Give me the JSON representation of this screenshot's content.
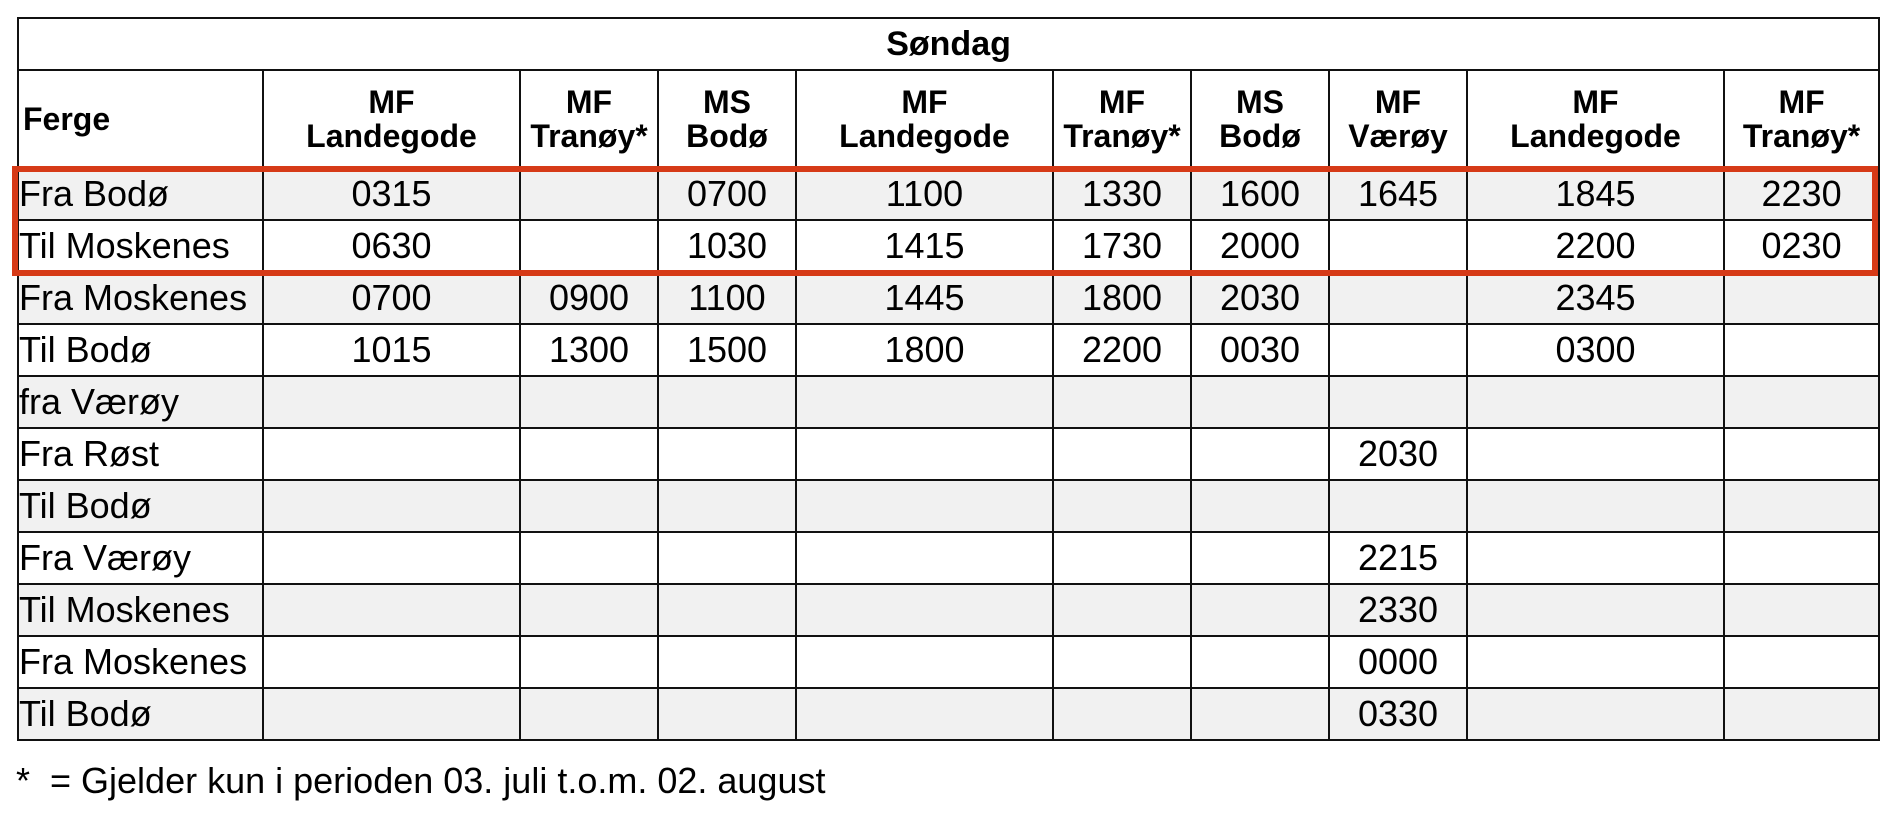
{
  "title": "Søndag",
  "header": {
    "label": "Ferge",
    "columns": [
      {
        "line1": "MF",
        "line2": "Landegode"
      },
      {
        "line1": "MF",
        "line2": "Tranøy*"
      },
      {
        "line1": "MS",
        "line2": "Bodø"
      },
      {
        "line1": "MF",
        "line2": "Landegode"
      },
      {
        "line1": "MF",
        "line2": "Tranøy*"
      },
      {
        "line1": "MS",
        "line2": "Bodø"
      },
      {
        "line1": "MF",
        "line2": "Værøy"
      },
      {
        "line1": "MF",
        "line2": "Landegode"
      },
      {
        "line1": "MF",
        "line2": "Tranøy*"
      }
    ]
  },
  "rows": [
    {
      "label": "Fra Bodø",
      "times": [
        "0315",
        "",
        "0700",
        "1100",
        "1330",
        "1600",
        "1645",
        "1845",
        "2230"
      ]
    },
    {
      "label": "Til Moskenes",
      "times": [
        "0630",
        "",
        "1030",
        "1415",
        "1730",
        "2000",
        "",
        "2200",
        "0230"
      ]
    },
    {
      "label": "Fra Moskenes",
      "times": [
        "0700",
        "0900",
        "1100",
        "1445",
        "1800",
        "2030",
        "",
        "2345",
        ""
      ]
    },
    {
      "label": "Til Bodø",
      "times": [
        "1015",
        "1300",
        "1500",
        "1800",
        "2200",
        "0030",
        "",
        "0300",
        ""
      ]
    },
    {
      "label": "fra Værøy",
      "times": [
        "",
        "",
        "",
        "",
        "",
        "",
        "",
        "",
        ""
      ]
    },
    {
      "label": "Fra Røst",
      "times": [
        "",
        "",
        "",
        "",
        "",
        "",
        "2030",
        "",
        ""
      ]
    },
    {
      "label": "Til Bodø",
      "times": [
        "",
        "",
        "",
        "",
        "",
        "",
        "",
        "",
        ""
      ]
    },
    {
      "label": "Fra Værøy",
      "times": [
        "",
        "",
        "",
        "",
        "",
        "",
        "2215",
        "",
        ""
      ]
    },
    {
      "label": "Til Moskenes",
      "times": [
        "",
        "",
        "",
        "",
        "",
        "",
        "2330",
        "",
        ""
      ]
    },
    {
      "label": "Fra Moskenes",
      "times": [
        "",
        "",
        "",
        "",
        "",
        "",
        "0000",
        "",
        ""
      ]
    },
    {
      "label": "Til Bodø",
      "times": [
        "",
        "",
        "",
        "",
        "",
        "",
        "0330",
        "",
        ""
      ]
    }
  ],
  "footnote": "*  = Gjelder kun i perioden 03. juli t.o.m. 02. august",
  "colors": {
    "highlight": "#d63a17",
    "zebra": "#f1f1f1",
    "border": "#111111"
  }
}
